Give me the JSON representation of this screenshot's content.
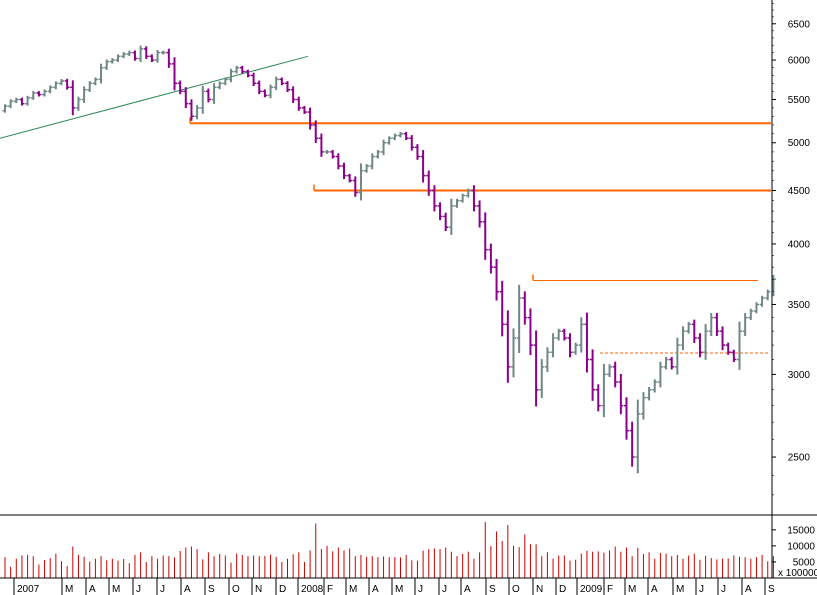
{
  "chart_data": {
    "type": "ohlc",
    "price_axis": {
      "scale": "log",
      "ylim": [
        2200,
        6850
      ],
      "ticks": [
        2500,
        3000,
        3500,
        4000,
        4500,
        5000,
        5500,
        6000,
        6500
      ],
      "tick_labels": [
        "2500",
        "3000",
        "3500",
        "4000",
        "4500",
        "5000",
        "5500",
        "6000",
        "6500"
      ],
      "grid": false
    },
    "volume_axis": {
      "ylim": [
        0,
        19000
      ],
      "ticks": [
        5000,
        10000,
        15000
      ],
      "tick_labels": [
        "5000",
        "10000",
        "15000"
      ],
      "unit_label": "x 100000"
    },
    "x_axis": {
      "labels": [
        "2007",
        "M",
        "A",
        "M",
        "J",
        "J",
        "A",
        "S",
        "O",
        "N",
        "D",
        "2008",
        "F",
        "M",
        "A",
        "M",
        "J",
        "J",
        "A",
        "S",
        "O",
        "N",
        "D",
        "2009",
        "F",
        "M",
        "A",
        "M",
        "J",
        "J",
        "A",
        "S"
      ]
    },
    "colors": {
      "up": "#6f8787",
      "down": "#8b008b",
      "volume": "#cc0000",
      "support_resistance": "#ff6600",
      "trendline": "#2e8b57"
    },
    "levels": [
      {
        "value": 5220,
        "style": "solid"
      },
      {
        "value": 4500,
        "style": "solid"
      },
      {
        "value": 3690,
        "style": "solid-thin"
      },
      {
        "value": 3145,
        "style": "dashed"
      }
    ],
    "trendline": {
      "from": {
        "week": 0,
        "price": 5050
      },
      "to": {
        "week": 80,
        "price": 6050
      }
    },
    "weekly_close": [
      5420,
      5480,
      5500,
      5450,
      5520,
      5580,
      5560,
      5600,
      5650,
      5700,
      5730,
      5650,
      5400,
      5500,
      5620,
      5700,
      5750,
      5900,
      5980,
      6000,
      6050,
      6080,
      6100,
      6020,
      6150,
      6050,
      6000,
      6100,
      6100,
      5950,
      5700,
      5600,
      5450,
      5300,
      5400,
      5600,
      5500,
      5650,
      5700,
      5750,
      5850,
      5900,
      5850,
      5800,
      5700,
      5600,
      5550,
      5650,
      5750,
      5700,
      5620,
      5500,
      5400,
      5350,
      5200,
      5050,
      4900,
      4900,
      4850,
      4750,
      4650,
      4600,
      4480,
      4700,
      4750,
      4850,
      4900,
      5000,
      5050,
      5080,
      5100,
      5050,
      4950,
      4850,
      4650,
      4500,
      4350,
      4250,
      4150,
      4350,
      4400,
      4450,
      4500,
      4350,
      4200,
      3950,
      3800,
      3600,
      3350,
      3050,
      3250,
      3550,
      3400,
      3200,
      2900,
      3050,
      3150,
      3250,
      3300,
      3250,
      3150,
      3200,
      3350,
      3100,
      2900,
      2800,
      3000,
      3050,
      2950,
      2800,
      2650,
      2500,
      2750,
      2850,
      2900,
      2950,
      3050,
      3100,
      3050,
      3200,
      3300,
      3350,
      3250,
      3150,
      3300,
      3400,
      3300,
      3200,
      3150,
      3100,
      3300,
      3400,
      3450,
      3500,
      3550,
      3600,
      3700
    ],
    "weekly_volume": [
      6500,
      3500,
      6000,
      7000,
      7200,
      6800,
      4200,
      5600,
      6200,
      7600,
      5200,
      3700,
      9800,
      7200,
      6600,
      5100,
      6000,
      6800,
      5500,
      6000,
      5400,
      5900,
      4600,
      7200,
      8000,
      5000,
      6800,
      6000,
      7000,
      6800,
      6400,
      8400,
      9500,
      9800,
      9000,
      5800,
      8000,
      6800,
      7500,
      7000,
      4800,
      7600,
      7200,
      6800,
      7000,
      6800,
      6900,
      7300,
      6600,
      5000,
      6000,
      7400,
      8000,
      5000,
      8600,
      17000,
      9000,
      10000,
      8300,
      9500,
      8600,
      9200,
      6800,
      7200,
      6600,
      6800,
      6500,
      6700,
      6500,
      6500,
      6400,
      7200,
      5500,
      5400,
      8500,
      9000,
      9200,
      9000,
      9500,
      8200,
      6800,
      7500,
      8200,
      6000,
      8000,
      17500,
      10000,
      14500,
      11500,
      16500,
      10000,
      9600,
      13600,
      10500,
      10500,
      6800,
      8000,
      6000,
      7000,
      7000,
      5400,
      5700,
      7600,
      8500,
      8200,
      8300,
      7900,
      8600,
      9800,
      8200,
      9500,
      6800,
      9400,
      7500,
      8000,
      6000,
      7800,
      7600,
      6800,
      7200,
      6000,
      7000,
      7600,
      5700,
      6900,
      6200,
      5800,
      6000,
      6100,
      7000,
      6600,
      6500,
      6000,
      6500,
      7200,
      5200,
      6800
    ]
  }
}
